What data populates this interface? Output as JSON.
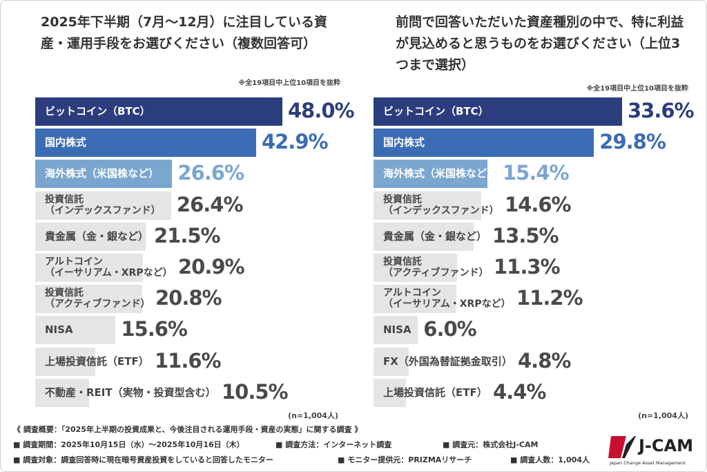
{
  "chart_data": [
    {
      "type": "bar",
      "title": "2025年下半期（7月〜12月）に注目している資産・運用手段をお選びください（複数回答可）",
      "note": "※全19項目中上位10項目を抜粋",
      "sample": "(n=1,004人)",
      "categories": [
        "ビットコイン（BTC）",
        "国内株式",
        "海外株式（米国株など）",
        "投資信託\n（インデックスファンド）",
        "貴金属（金・銀など）",
        "アルトコイン\n（イーサリアム・XRPなど）",
        "投資信託\n（アクティブファンド）",
        "NISA",
        "上場投資信託（ETF）",
        "不動産・REIT（実物・投資型含む）"
      ],
      "values": [
        48.0,
        42.9,
        26.6,
        26.4,
        21.5,
        20.9,
        20.8,
        15.6,
        11.6,
        10.5
      ],
      "value_labels": [
        "48.0%",
        "42.9%",
        "26.6%",
        "26.4%",
        "21.5%",
        "20.9%",
        "20.8%",
        "15.6%",
        "11.6%",
        "10.5%"
      ],
      "colors": [
        "#2b3d7d",
        "#3b6cb4",
        "#7ba6d0",
        "#e5e5e5",
        "#e5e5e5",
        "#e5e5e5",
        "#e5e5e5",
        "#e5e5e5",
        "#e5e5e5",
        "#e5e5e5"
      ],
      "text_colors": [
        "#ffffff",
        "#ffffff",
        "#ffffff",
        "#444444",
        "#444444",
        "#444444",
        "#444444",
        "#444444",
        "#444444",
        "#444444"
      ],
      "value_label_colors": [
        "#2b3d7d",
        "#3b6cb4",
        "#7ba6d0",
        "#4a4a4a",
        "#4a4a4a",
        "#4a4a4a",
        "#4a4a4a",
        "#4a4a4a",
        "#4a4a4a",
        "#4a4a4a"
      ]
    },
    {
      "type": "bar",
      "title": "前問で回答いただいた資産種別の中で、特に利益が見込めると思うものをお選びください（上位3つまで選択）",
      "note": "※全19項目中上位10項目を抜粋",
      "sample": "(n=1,004人)",
      "categories": [
        "ビットコイン（BTC）",
        "国内株式",
        "海外株式（米国株など）",
        "投資信託\n（インデックスファンド）",
        "貴金属（金・銀など）",
        "投資信託\n（アクティブファンド）",
        "アルトコイン\n（イーサリアム・XRPなど）",
        "NISA",
        "FX（外国為替証拠金取引）",
        "上場投資信託（ETF）"
      ],
      "values": [
        33.6,
        29.8,
        15.4,
        14.6,
        13.5,
        11.3,
        11.2,
        6.0,
        4.8,
        4.4
      ],
      "value_labels": [
        "33.6%",
        "29.8%",
        "15.4%",
        "14.6%",
        "13.5%",
        "11.3%",
        "11.2%",
        "6.0%",
        "4.8%",
        "4.4%"
      ],
      "colors": [
        "#2b3d7d",
        "#3b6cb4",
        "#7ba6d0",
        "#e5e5e5",
        "#e5e5e5",
        "#e5e5e5",
        "#e5e5e5",
        "#e5e5e5",
        "#e5e5e5",
        "#e5e5e5"
      ],
      "text_colors": [
        "#ffffff",
        "#ffffff",
        "#ffffff",
        "#444444",
        "#444444",
        "#444444",
        "#444444",
        "#444444",
        "#444444",
        "#444444"
      ],
      "value_label_colors": [
        "#2b3d7d",
        "#3b6cb4",
        "#7ba6d0",
        "#4a4a4a",
        "#4a4a4a",
        "#4a4a4a",
        "#4a4a4a",
        "#4a4a4a",
        "#4a4a4a",
        "#4a4a4a"
      ]
    }
  ],
  "footer": {
    "summary": "《 調査概要：「2025年上半期の投資成果と、今後注目される運用手段・資産の実態」に関する調査 》",
    "items": [
      "■ 調査期間：2025年10月15日（水）〜2025年10月16日（木）",
      "■ 調査方法：インターネット調査",
      "■ 調査元：株式会社J-CAM",
      "■ 調査対象：調査回答時に現在暗号資産投資をしていると回答したモニター",
      "■ モニター提供元：PRIZMAリサーチ",
      "■ 調査人数：1,004人"
    ]
  },
  "logo": {
    "name": "J-CAM",
    "tagline": "Japan Change Asset Management"
  }
}
